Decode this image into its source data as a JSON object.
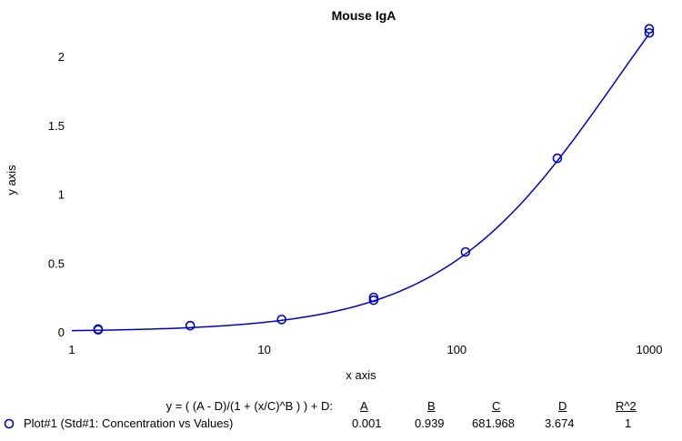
{
  "chart_data": {
    "type": "scatter",
    "title": "Mouse IgA",
    "xlabel": "x axis",
    "ylabel": "y axis",
    "xscale": "log",
    "xlim": [
      1,
      1000
    ],
    "ylim": [
      0,
      2.2
    ],
    "x_ticks": [
      "1",
      "10",
      "100",
      "1000"
    ],
    "y_ticks": [
      "0",
      "0.5",
      "1",
      "1.5",
      "2"
    ],
    "series": [
      {
        "name": "Plot#1 (Std#1: Concentration vs Values)",
        "color": "#0000cc",
        "marker": "circle",
        "points": [
          {
            "x": 1.37,
            "y": 0.015
          },
          {
            "x": 1.37,
            "y": 0.02
          },
          {
            "x": 4.12,
            "y": 0.045
          },
          {
            "x": 12.3,
            "y": 0.09
          },
          {
            "x": 37.0,
            "y": 0.23
          },
          {
            "x": 37.0,
            "y": 0.25
          },
          {
            "x": 111,
            "y": 0.58
          },
          {
            "x": 333,
            "y": 1.26
          },
          {
            "x": 1000,
            "y": 2.17
          },
          {
            "x": 1000,
            "y": 2.2
          }
        ]
      }
    ],
    "fit": {
      "equation": "y = ( (A - D)/(1 + (x/C)^B ) ) + D:",
      "A": 0.001,
      "B": 0.939,
      "C": 681.968,
      "D": 3.674
    }
  },
  "legend_table": {
    "equation": "y = ( (A - D)/(1 + (x/C)^B ) ) + D:",
    "headers": [
      "A",
      "B",
      "C",
      "D",
      "R^2"
    ],
    "plot_label": "Plot#1 (Std#1: Concentration vs Values)",
    "values": [
      "0.001",
      "0.939",
      "681.968",
      "3.674",
      "1"
    ]
  }
}
